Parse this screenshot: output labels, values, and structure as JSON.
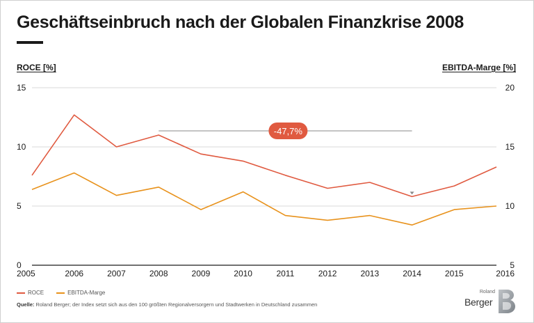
{
  "title": "Geschäftseinbruch nach der Globalen Finanzkrise 2008",
  "left_axis_title": "ROCE [%]",
  "right_axis_title": "EBITDA-Marge [%]",
  "legend": {
    "roce": "ROCE",
    "ebitda": "EBITDA-Marge"
  },
  "source_label": "Quelle:",
  "source_text": "Roland Berger; der Index setzt sich aus den 100 größten Regionalversorgern und Stadtwerken in Deutschland zusammen",
  "logo": {
    "small_text": "Roland",
    "main_text": "Berger",
    "mark_letter": "B"
  },
  "annotation": {
    "label": "-47,7%",
    "from": "2008",
    "to": "2014",
    "color": "#e05a40"
  },
  "colors": {
    "roce": "#e05a40",
    "ebitda": "#e8921c",
    "gridline": "#d9d9d9",
    "bracket": "#8a8a8a"
  },
  "chart_data": {
    "type": "line",
    "title": "Geschäftseinbruch nach der Globalen Finanzkrise 2008",
    "x": [
      "2005",
      "2006",
      "2007",
      "2008",
      "2009",
      "2010",
      "2011",
      "2012",
      "2013",
      "2014",
      "2015",
      "2016"
    ],
    "series": [
      {
        "name": "ROCE",
        "axis": "left",
        "values": [
          7.6,
          12.7,
          10.0,
          11.0,
          9.4,
          8.8,
          7.6,
          6.5,
          7.0,
          5.8,
          6.7,
          8.3
        ]
      },
      {
        "name": "EBITDA-Marge",
        "axis": "right",
        "values": [
          11.4,
          12.8,
          10.9,
          11.6,
          9.7,
          11.2,
          9.2,
          8.8,
          9.2,
          8.4,
          9.7,
          10.0
        ]
      }
    ],
    "ylabel_left": "ROCE [%]",
    "ylabel_right": "EBITDA-Marge [%]",
    "ylim_left": [
      0,
      15
    ],
    "yticks_left": [
      "0",
      "5",
      "10",
      "15"
    ],
    "ylim_right": [
      5,
      20
    ],
    "yticks_right": [
      "5",
      "10",
      "15",
      "20"
    ],
    "grid": true,
    "legend_position": "bottom-left"
  }
}
